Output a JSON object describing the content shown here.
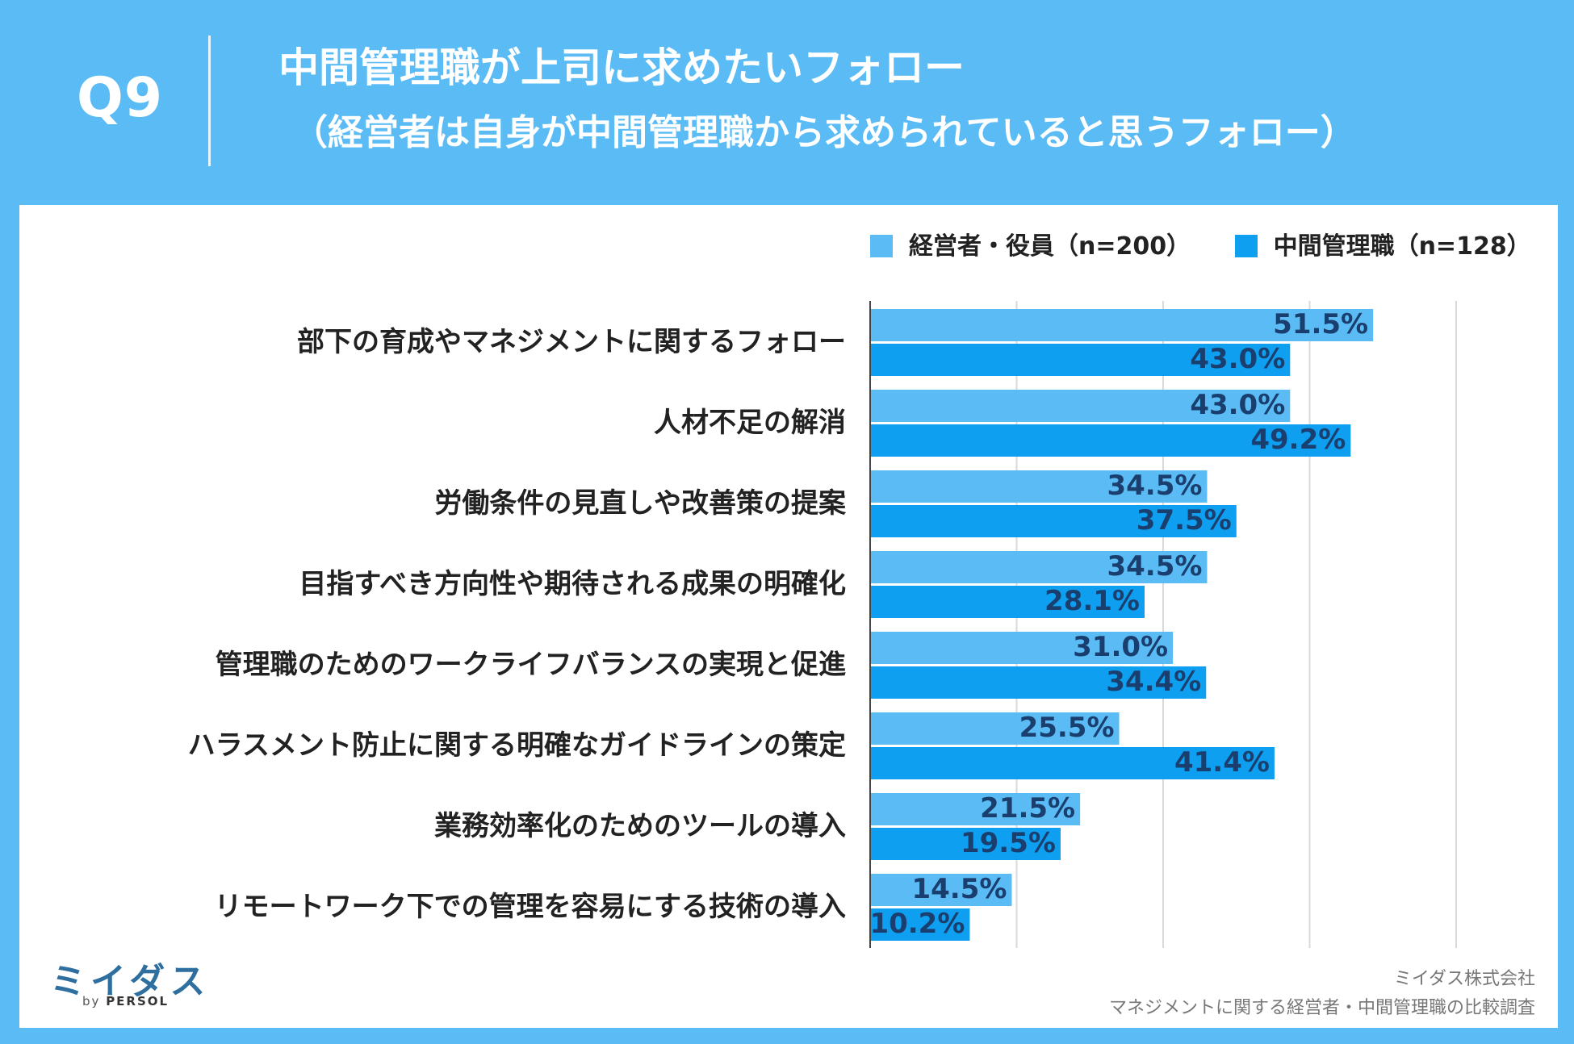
{
  "header": {
    "qnum": "Q9",
    "title": "中間管理職が上司に求めたいフォロー",
    "subtitle": "（経営者は自身が中間管理職から求められていると思うフォロー）"
  },
  "colors": {
    "background": "#5bbcf5",
    "series1": "#5bbcf5",
    "series2": "#0f9ff0",
    "label": "#1a3f6e"
  },
  "chart_data": {
    "type": "bar",
    "orientation": "horizontal",
    "categories": [
      "部下の育成やマネジメントに関するフォロー",
      "人材不足の解消",
      "労働条件の見直しや改善策の提案",
      "目指すべき方向性や期待される成果の明確化",
      "管理職のためのワークライフバランスの実現と促進",
      "ハラスメント防止に関する明確なガイドラインの策定",
      "業務効率化のためのツールの導入",
      "リモートワーク下での管理を容易にする技術の導入"
    ],
    "series": [
      {
        "name": "経営者・役員（n=200）",
        "values": [
          51.5,
          43.0,
          34.5,
          34.5,
          31.0,
          25.5,
          21.5,
          14.5
        ]
      },
      {
        "name": "中間管理職（n=128）",
        "values": [
          43.0,
          49.2,
          37.5,
          28.1,
          34.4,
          41.4,
          19.5,
          10.2
        ]
      }
    ],
    "value_suffix": "%",
    "xlim": [
      0,
      60
    ],
    "grid_step": 15,
    "legend_position": "top-right"
  },
  "footer": {
    "brand": "ミイダス",
    "brand_by": "by",
    "brand_persol": "PERSOL",
    "company": "ミイダス株式会社",
    "survey": "マネジメントに関する経営者・中間管理職の比較調査"
  }
}
